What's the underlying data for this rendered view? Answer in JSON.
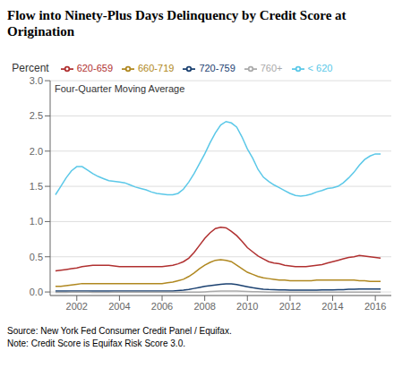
{
  "chart_data": {
    "type": "line",
    "title": "Flow into Ninety-Plus Days Delinquency by Credit Score at Origination",
    "ylabel": "Percent",
    "annotation": "Four-Quarter Moving Average",
    "source": "Source: New York Fed Consumer Credit Panel / Equifax.",
    "note": "Note: Credit Score is Equifax Risk Score 3.0.",
    "xlim": [
      2000.75,
      2016.75
    ],
    "ylim": [
      -0.05,
      3.0
    ],
    "yticks": [
      {
        "value": 0.0,
        "label": "0.0"
      },
      0.5,
      {
        "value": 1.0,
        "label": "1.0"
      },
      1.5,
      {
        "value": 2.0,
        "label": "2.0"
      },
      2.5,
      {
        "value": 3.0,
        "label": "3.0"
      }
    ],
    "xticks": [
      2002,
      2004,
      2006,
      2008,
      2010,
      2012,
      2014,
      2016
    ],
    "grid": "y",
    "legend": "top",
    "x": [
      2001.0,
      2001.25,
      2001.5,
      2001.75,
      2002.0,
      2002.25,
      2002.5,
      2002.75,
      2003.0,
      2003.25,
      2003.5,
      2003.75,
      2004.0,
      2004.25,
      2004.5,
      2004.75,
      2005.0,
      2005.25,
      2005.5,
      2005.75,
      2006.0,
      2006.25,
      2006.5,
      2006.75,
      2007.0,
      2007.25,
      2007.5,
      2007.75,
      2008.0,
      2008.25,
      2008.5,
      2008.75,
      2009.0,
      2009.25,
      2009.5,
      2009.75,
      2010.0,
      2010.25,
      2010.5,
      2010.75,
      2011.0,
      2011.25,
      2011.5,
      2011.75,
      2012.0,
      2012.25,
      2012.5,
      2012.75,
      2013.0,
      2013.25,
      2013.5,
      2013.75,
      2014.0,
      2014.25,
      2014.5,
      2014.75,
      2015.0,
      2015.25,
      2015.5,
      2015.75,
      2016.0,
      2016.25
    ],
    "series": [
      {
        "name": "< 620",
        "color": "#5BC8E8",
        "values": [
          1.38,
          1.5,
          1.62,
          1.72,
          1.78,
          1.78,
          1.73,
          1.68,
          1.64,
          1.61,
          1.58,
          1.57,
          1.56,
          1.55,
          1.52,
          1.49,
          1.47,
          1.45,
          1.42,
          1.4,
          1.39,
          1.38,
          1.38,
          1.4,
          1.46,
          1.56,
          1.68,
          1.82,
          1.96,
          2.12,
          2.26,
          2.37,
          2.42,
          2.4,
          2.34,
          2.2,
          2.03,
          1.9,
          1.74,
          1.63,
          1.57,
          1.52,
          1.48,
          1.44,
          1.4,
          1.37,
          1.36,
          1.37,
          1.39,
          1.42,
          1.44,
          1.47,
          1.48,
          1.5,
          1.55,
          1.62,
          1.7,
          1.8,
          1.88,
          1.93,
          1.96,
          1.96
        ]
      },
      {
        "name": "620-659",
        "color": "#B03030",
        "values": [
          0.3,
          0.31,
          0.32,
          0.33,
          0.34,
          0.36,
          0.37,
          0.38,
          0.38,
          0.38,
          0.38,
          0.37,
          0.36,
          0.36,
          0.36,
          0.36,
          0.36,
          0.36,
          0.36,
          0.36,
          0.36,
          0.37,
          0.38,
          0.4,
          0.43,
          0.48,
          0.56,
          0.66,
          0.76,
          0.84,
          0.9,
          0.92,
          0.91,
          0.86,
          0.8,
          0.72,
          0.63,
          0.57,
          0.51,
          0.47,
          0.43,
          0.41,
          0.4,
          0.38,
          0.37,
          0.36,
          0.36,
          0.36,
          0.37,
          0.38,
          0.39,
          0.41,
          0.43,
          0.45,
          0.47,
          0.49,
          0.5,
          0.52,
          0.51,
          0.5,
          0.49,
          0.48
        ]
      },
      {
        "name": "660-719",
        "color": "#B08820",
        "values": [
          0.08,
          0.08,
          0.09,
          0.1,
          0.11,
          0.12,
          0.12,
          0.12,
          0.12,
          0.12,
          0.12,
          0.12,
          0.12,
          0.12,
          0.12,
          0.12,
          0.12,
          0.12,
          0.12,
          0.12,
          0.12,
          0.13,
          0.14,
          0.16,
          0.18,
          0.22,
          0.27,
          0.33,
          0.38,
          0.42,
          0.45,
          0.46,
          0.45,
          0.43,
          0.38,
          0.33,
          0.28,
          0.25,
          0.22,
          0.2,
          0.19,
          0.18,
          0.17,
          0.17,
          0.16,
          0.16,
          0.16,
          0.16,
          0.16,
          0.17,
          0.17,
          0.17,
          0.17,
          0.17,
          0.17,
          0.17,
          0.17,
          0.16,
          0.16,
          0.15,
          0.15,
          0.15
        ]
      },
      {
        "name": "720-759",
        "color": "#1A4070",
        "values": [
          0.015,
          0.015,
          0.015,
          0.015,
          0.015,
          0.015,
          0.015,
          0.015,
          0.015,
          0.015,
          0.015,
          0.015,
          0.015,
          0.015,
          0.015,
          0.015,
          0.015,
          0.015,
          0.015,
          0.015,
          0.015,
          0.015,
          0.015,
          0.02,
          0.025,
          0.035,
          0.05,
          0.065,
          0.08,
          0.09,
          0.1,
          0.11,
          0.115,
          0.115,
          0.105,
          0.09,
          0.075,
          0.06,
          0.05,
          0.04,
          0.035,
          0.033,
          0.03,
          0.028,
          0.025,
          0.025,
          0.025,
          0.025,
          0.025,
          0.025,
          0.028,
          0.03,
          0.03,
          0.032,
          0.034,
          0.038,
          0.04,
          0.042,
          0.043,
          0.043,
          0.043,
          0.043
        ]
      },
      {
        "name": "760+",
        "color": "#AAAAAA",
        "values": [
          -0.005,
          -0.005,
          -0.005,
          -0.003,
          -0.002,
          -0.002,
          -0.003,
          -0.004,
          -0.004,
          -0.004,
          -0.004,
          -0.003,
          -0.003,
          -0.003,
          -0.003,
          -0.003,
          -0.003,
          -0.003,
          -0.003,
          -0.003,
          -0.003,
          -0.003,
          -0.003,
          -0.002,
          -0.002,
          -0.002,
          -0.002,
          -0.002,
          0.002,
          0.006,
          0.01,
          0.012,
          0.013,
          0.013,
          0.012,
          0.01,
          0.007,
          0.005,
          0.003,
          0.001,
          -0.001,
          -0.002,
          -0.003,
          -0.003,
          -0.003,
          -0.003,
          -0.003,
          -0.003,
          -0.003,
          -0.003,
          -0.003,
          -0.003,
          -0.003,
          -0.003,
          -0.003,
          -0.003,
          -0.003,
          -0.003,
          -0.003,
          -0.003,
          -0.003,
          -0.003
        ]
      }
    ]
  }
}
